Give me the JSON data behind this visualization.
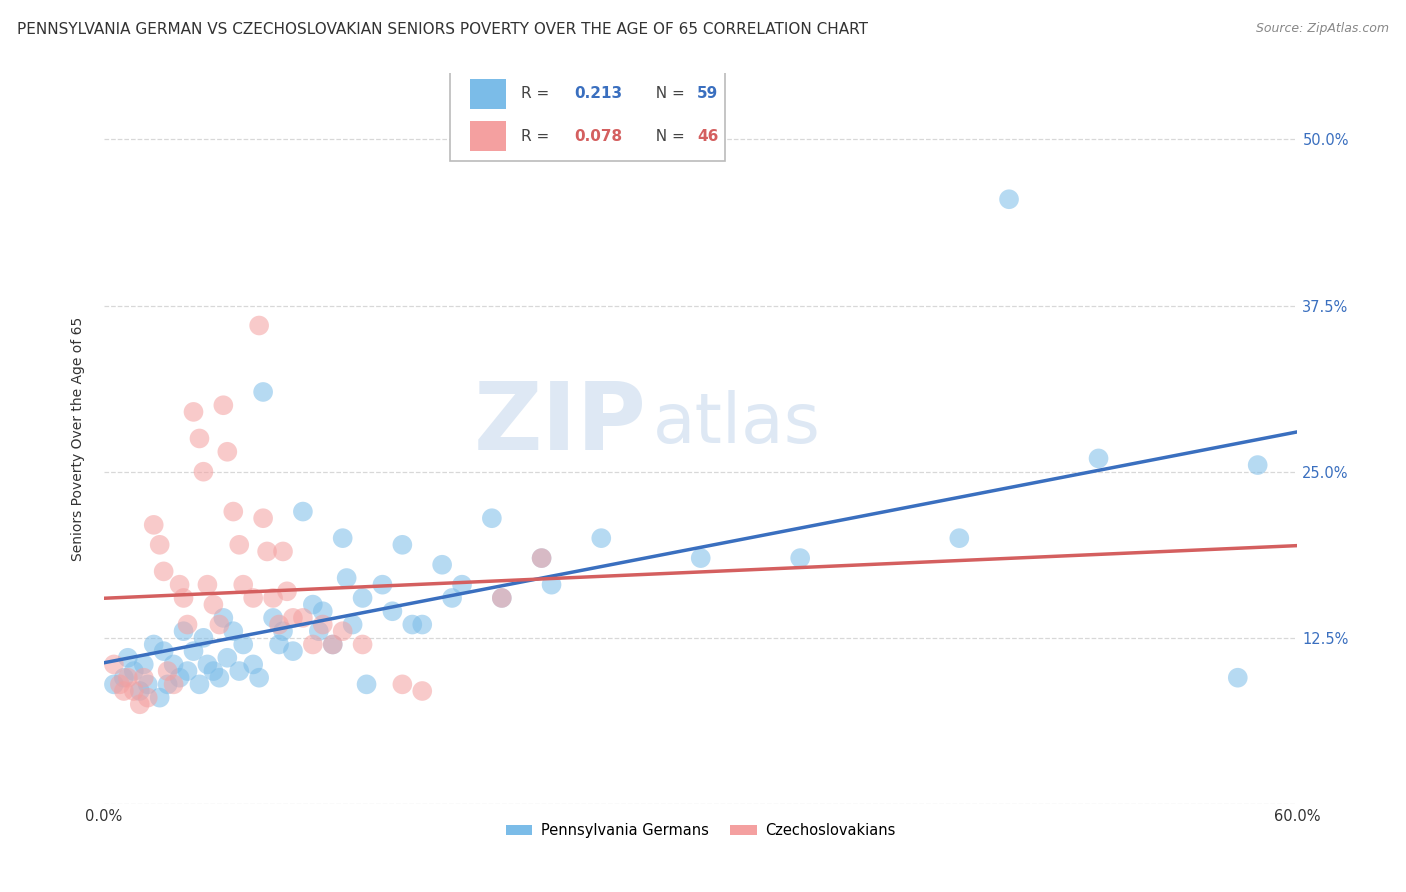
{
  "title": "PENNSYLVANIA GERMAN VS CZECHOSLOVAKIAN SENIORS POVERTY OVER THE AGE OF 65 CORRELATION CHART",
  "source": "Source: ZipAtlas.com",
  "ylabel": "Seniors Poverty Over the Age of 65",
  "xlim": [
    0.0,
    0.6
  ],
  "ylim": [
    0.0,
    0.55
  ],
  "xticks": [
    0.0,
    0.1,
    0.2,
    0.3,
    0.4,
    0.5,
    0.6
  ],
  "xticklabels": [
    "0.0%",
    "",
    "",
    "",
    "",
    "",
    "60.0%"
  ],
  "yticks": [
    0.0,
    0.125,
    0.25,
    0.375,
    0.5
  ],
  "yticklabels_right": [
    "",
    "12.5%",
    "25.0%",
    "37.5%",
    "50.0%"
  ],
  "color_blue": "#7bbce8",
  "color_pink": "#f4a0a0",
  "color_blue_line": "#3a6fbf",
  "color_pink_line": "#d45f5f",
  "watermark_zip": "ZIP",
  "watermark_atlas": "atlas",
  "pg_points": [
    [
      0.005,
      0.09
    ],
    [
      0.01,
      0.095
    ],
    [
      0.012,
      0.11
    ],
    [
      0.015,
      0.1
    ],
    [
      0.018,
      0.085
    ],
    [
      0.02,
      0.105
    ],
    [
      0.022,
      0.09
    ],
    [
      0.025,
      0.12
    ],
    [
      0.028,
      0.08
    ],
    [
      0.03,
      0.115
    ],
    [
      0.032,
      0.09
    ],
    [
      0.035,
      0.105
    ],
    [
      0.038,
      0.095
    ],
    [
      0.04,
      0.13
    ],
    [
      0.042,
      0.1
    ],
    [
      0.045,
      0.115
    ],
    [
      0.048,
      0.09
    ],
    [
      0.05,
      0.125
    ],
    [
      0.052,
      0.105
    ],
    [
      0.055,
      0.1
    ],
    [
      0.058,
      0.095
    ],
    [
      0.06,
      0.14
    ],
    [
      0.062,
      0.11
    ],
    [
      0.065,
      0.13
    ],
    [
      0.068,
      0.1
    ],
    [
      0.07,
      0.12
    ],
    [
      0.075,
      0.105
    ],
    [
      0.078,
      0.095
    ],
    [
      0.08,
      0.31
    ],
    [
      0.085,
      0.14
    ],
    [
      0.088,
      0.12
    ],
    [
      0.09,
      0.13
    ],
    [
      0.095,
      0.115
    ],
    [
      0.1,
      0.22
    ],
    [
      0.105,
      0.15
    ],
    [
      0.108,
      0.13
    ],
    [
      0.11,
      0.145
    ],
    [
      0.115,
      0.12
    ],
    [
      0.12,
      0.2
    ],
    [
      0.122,
      0.17
    ],
    [
      0.125,
      0.135
    ],
    [
      0.13,
      0.155
    ],
    [
      0.132,
      0.09
    ],
    [
      0.14,
      0.165
    ],
    [
      0.145,
      0.145
    ],
    [
      0.15,
      0.195
    ],
    [
      0.155,
      0.135
    ],
    [
      0.16,
      0.135
    ],
    [
      0.17,
      0.18
    ],
    [
      0.175,
      0.155
    ],
    [
      0.18,
      0.165
    ],
    [
      0.195,
      0.215
    ],
    [
      0.2,
      0.155
    ],
    [
      0.22,
      0.185
    ],
    [
      0.225,
      0.165
    ],
    [
      0.25,
      0.2
    ],
    [
      0.3,
      0.185
    ],
    [
      0.35,
      0.185
    ],
    [
      0.43,
      0.2
    ],
    [
      0.455,
      0.455
    ],
    [
      0.5,
      0.26
    ],
    [
      0.57,
      0.095
    ],
    [
      0.58,
      0.255
    ]
  ],
  "cs_points": [
    [
      0.005,
      0.105
    ],
    [
      0.008,
      0.09
    ],
    [
      0.01,
      0.085
    ],
    [
      0.012,
      0.095
    ],
    [
      0.015,
      0.085
    ],
    [
      0.018,
      0.075
    ],
    [
      0.02,
      0.095
    ],
    [
      0.022,
      0.08
    ],
    [
      0.025,
      0.21
    ],
    [
      0.028,
      0.195
    ],
    [
      0.03,
      0.175
    ],
    [
      0.032,
      0.1
    ],
    [
      0.035,
      0.09
    ],
    [
      0.038,
      0.165
    ],
    [
      0.04,
      0.155
    ],
    [
      0.042,
      0.135
    ],
    [
      0.045,
      0.295
    ],
    [
      0.048,
      0.275
    ],
    [
      0.05,
      0.25
    ],
    [
      0.052,
      0.165
    ],
    [
      0.055,
      0.15
    ],
    [
      0.058,
      0.135
    ],
    [
      0.06,
      0.3
    ],
    [
      0.062,
      0.265
    ],
    [
      0.065,
      0.22
    ],
    [
      0.068,
      0.195
    ],
    [
      0.07,
      0.165
    ],
    [
      0.075,
      0.155
    ],
    [
      0.078,
      0.36
    ],
    [
      0.08,
      0.215
    ],
    [
      0.082,
      0.19
    ],
    [
      0.085,
      0.155
    ],
    [
      0.088,
      0.135
    ],
    [
      0.09,
      0.19
    ],
    [
      0.092,
      0.16
    ],
    [
      0.095,
      0.14
    ],
    [
      0.1,
      0.14
    ],
    [
      0.105,
      0.12
    ],
    [
      0.11,
      0.135
    ],
    [
      0.115,
      0.12
    ],
    [
      0.12,
      0.13
    ],
    [
      0.13,
      0.12
    ],
    [
      0.15,
      0.09
    ],
    [
      0.16,
      0.085
    ],
    [
      0.2,
      0.155
    ],
    [
      0.22,
      0.185
    ]
  ],
  "background_color": "#ffffff",
  "grid_color": "#d8d8d8",
  "title_fontsize": 11,
  "axis_label_fontsize": 10,
  "tick_fontsize": 10.5
}
